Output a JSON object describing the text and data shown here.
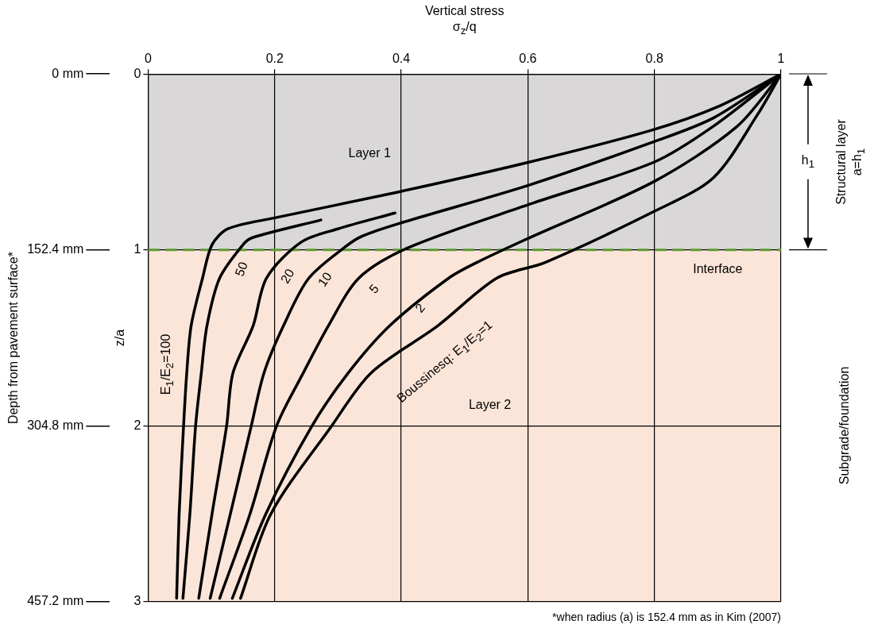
{
  "chart_data": {
    "type": "line",
    "title": "Vertical stress",
    "xlabel": "σ$_{z}$/q",
    "ylabel": "z/a",
    "y2label": "Depth from pavement surface*",
    "xlim": [
      0,
      1
    ],
    "xticks": [
      0,
      0.2,
      0.4,
      0.6,
      0.8,
      1
    ],
    "ylim": [
      3,
      0
    ],
    "yticks": [
      0,
      1,
      2,
      3
    ],
    "y2lim": [
      457.2,
      0
    ],
    "y2ticks": [
      {
        "value": 0,
        "label": "0 mm"
      },
      {
        "value": 152.4,
        "label": "152.4 mm"
      },
      {
        "value": 304.8,
        "label": "304.8 mm"
      },
      {
        "value": 457.2,
        "label": "457.2 mm"
      }
    ],
    "grid": true,
    "series": [
      {
        "name": "E$_{1}$/E$_{2}$=100",
        "color": "#000000",
        "x": [
          1,
          0.904,
          0.795,
          0.603,
          0.396,
          0.197,
          0.126,
          0.101,
          0.086,
          0.068,
          0.061,
          0.056,
          0.049,
          0.045
        ],
        "values": [
          0,
          0.18,
          0.32,
          0.5,
          0.67,
          0.82,
          0.88,
          0.97,
          1.16,
          1.43,
          1.7,
          2.0,
          2.5,
          2.98
        ]
      },
      {
        "name": "50",
        "color": "#000000",
        "x": [
          0.273,
          0.165,
          0.15,
          0.113,
          0.093,
          0.084,
          0.075,
          0.066,
          0.055
        ],
        "values": [
          0.83,
          0.93,
          0.97,
          1.16,
          1.43,
          1.7,
          2.0,
          2.5,
          2.98
        ]
      },
      {
        "name": "20",
        "color": "#000000",
        "x": [
          0.39,
          0.3,
          0.242,
          0.187,
          0.166,
          0.134,
          0.124,
          0.101,
          0.08
        ],
        "values": [
          0.79,
          0.88,
          0.955,
          1.16,
          1.43,
          1.7,
          2.0,
          2.5,
          2.98
        ]
      },
      {
        "name": "10",
        "color": "#000000",
        "x": [
          1,
          0.893,
          0.795,
          0.603,
          0.396,
          0.339,
          0.316,
          0.254,
          0.214,
          0.183,
          0.163,
          0.13,
          0.098
        ],
        "values": [
          0,
          0.25,
          0.39,
          0.63,
          0.85,
          0.92,
          0.97,
          1.16,
          1.43,
          1.7,
          2.0,
          2.5,
          2.98
        ]
      },
      {
        "name": "5",
        "color": "#000000",
        "x": [
          1,
          0.892,
          0.8,
          0.603,
          0.409,
          0.333,
          0.285,
          0.245,
          0.203,
          0.161,
          0.113
        ],
        "values": [
          0,
          0.3,
          0.5,
          0.74,
          0.99,
          1.16,
          1.43,
          1.7,
          2.0,
          2.5,
          2.98
        ]
      },
      {
        "name": "2",
        "color": "#000000",
        "x": [
          1,
          0.93,
          0.8,
          0.603,
          0.52,
          0.475,
          0.382,
          0.316,
          0.259,
          0.186,
          0.133
        ],
        "values": [
          0,
          0.3,
          0.61,
          0.93,
          1.07,
          1.16,
          1.43,
          1.7,
          2.0,
          2.5,
          2.98
        ]
      },
      {
        "name": "Boussinesq: E$_{1}$/E$_{2}$=1",
        "color": "#000000",
        "x": [
          1,
          0.963,
          0.893,
          0.8,
          0.628,
          0.551,
          0.458,
          0.352,
          0.29,
          0.194,
          0.146
        ],
        "values": [
          0,
          0.23,
          0.59,
          0.78,
          1.07,
          1.16,
          1.43,
          1.7,
          2.0,
          2.5,
          2.98
        ]
      }
    ],
    "bands": [
      {
        "axis": "y",
        "from": 0,
        "to": 1,
        "label": "Layer 1",
        "color": "#d9d7d8"
      },
      {
        "axis": "y",
        "from": 1,
        "to": 3,
        "label": "Layer 2",
        "color": "#fbe5d8"
      }
    ],
    "ref_lines": [
      {
        "axis": "y",
        "value": 1,
        "label": "Interface",
        "color": "#5e9a33",
        "line_style": "dashed"
      }
    ],
    "annotations": [
      "Structural layer",
      "a=h$_{1}$",
      "h$_{1}$",
      "Subgrade/foundation",
      "*when radius (a) is 152.4 mm as in Kim (2007)"
    ]
  }
}
